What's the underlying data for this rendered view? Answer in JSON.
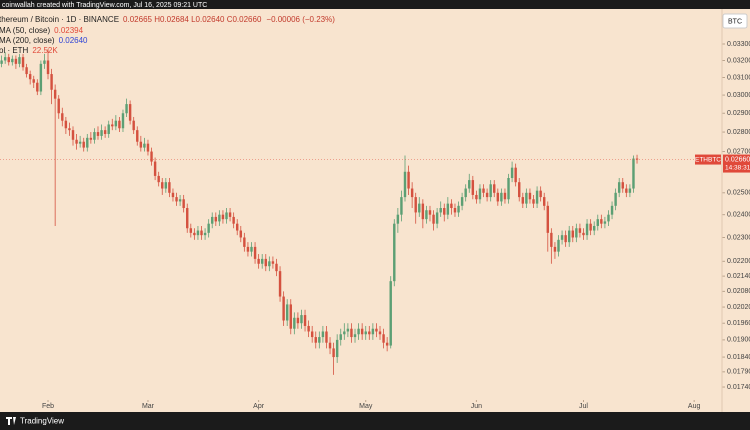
{
  "chart_data": {
    "type": "candlestick",
    "header": "coinwallah created with TradingView.com, Jul 16, 2025 09:21 UTC",
    "symbol": "thereum / Bitcoin · 1D · BINANCE",
    "ohlc_text": "0.02665  H0.02684  L0.02640  C0.02660",
    "change_text": "−0.00006 (−0.23%)",
    "indicators": [
      {
        "name": "MA (50, close)",
        "value": "0.02394",
        "color": "#e0493a"
      },
      {
        "name": "MA (200, close)",
        "value": "0.02640",
        "color": "#2f44d6"
      },
      {
        "name": "ol · ETH",
        "value": "22.52K",
        "color": "#e0493a"
      }
    ],
    "currency_button": "BTC",
    "last_price": {
      "symbol": "ETHBTC",
      "label": "0.02660",
      "countdown": "14:38:31",
      "value": 0.0266,
      "color": "#e0493a"
    },
    "up_color": "#5c9f74",
    "down_color": "#d4513f",
    "log_scale": true,
    "ylim": [
      0.01667,
      0.0349
    ],
    "yticks": [
      {
        "value": 0.033,
        "label": "0.03300"
      },
      {
        "value": 0.032,
        "label": "0.03200"
      },
      {
        "value": 0.031,
        "label": "0.03100"
      },
      {
        "value": 0.03,
        "label": "0.03000"
      },
      {
        "value": 0.029,
        "label": "0.02900"
      },
      {
        "value": 0.028,
        "label": "0.02800"
      },
      {
        "value": 0.027,
        "label": "0.02700"
      },
      {
        "value": 0.025,
        "label": "0.02500"
      },
      {
        "value": 0.024,
        "label": "0.02400"
      },
      {
        "value": 0.023,
        "label": "0.02300"
      },
      {
        "value": 0.022,
        "label": "0.02200"
      },
      {
        "value": 0.0214,
        "label": "0.02140"
      },
      {
        "value": 0.0208,
        "label": "0.02080"
      },
      {
        "value": 0.0202,
        "label": "0.02020"
      },
      {
        "value": 0.0196,
        "label": "0.01960"
      },
      {
        "value": 0.019,
        "label": "0.01900"
      },
      {
        "value": 0.0184,
        "label": "0.01840"
      },
      {
        "value": 0.0179,
        "label": "0.01790"
      },
      {
        "value": 0.0174,
        "label": "0.01740"
      }
    ],
    "xlim": [
      -0.45,
      201.8
    ],
    "xticks": [
      {
        "value": 13,
        "label": "Feb"
      },
      {
        "value": 41,
        "label": "Mar"
      },
      {
        "value": 72,
        "label": "Apr"
      },
      {
        "value": 102,
        "label": "May"
      },
      {
        "value": 133,
        "label": "Jun"
      },
      {
        "value": 163,
        "label": "Jul"
      },
      {
        "value": 194,
        "label": "Aug"
      }
    ],
    "open": [
      0.0318,
      0.032,
      0.0322,
      0.0319,
      0.0321,
      0.0318,
      0.0322,
      0.0316,
      0.0312,
      0.0309,
      0.0307,
      0.0302,
      0.0318,
      0.032,
      0.0312,
      0.0303,
      0.0298,
      0.029,
      0.0286,
      0.0282,
      0.0281,
      0.0276,
      0.0274,
      0.0275,
      0.0272,
      0.0277,
      0.0276,
      0.028,
      0.0278,
      0.0281,
      0.0279,
      0.0284,
      0.0283,
      0.0286,
      0.0282,
      0.029,
      0.0295,
      0.0286,
      0.0281,
      0.0275,
      0.0272,
      0.0274,
      0.027,
      0.0265,
      0.0258,
      0.0255,
      0.0252,
      0.0255,
      0.025,
      0.0248,
      0.0246,
      0.0247,
      0.0243,
      0.0234,
      0.0232,
      0.0231,
      0.0233,
      0.0231,
      0.0232,
      0.0236,
      0.0239,
      0.0237,
      0.024,
      0.0238,
      0.0241,
      0.0239,
      0.0236,
      0.0233,
      0.023,
      0.0226,
      0.0224,
      0.0226,
      0.0221,
      0.0219,
      0.0221,
      0.0218,
      0.022,
      0.0219,
      0.0216,
      0.0206,
      0.0197,
      0.0203,
      0.0194,
      0.0198,
      0.0196,
      0.0199,
      0.0195,
      0.0193,
      0.0191,
      0.0189,
      0.0191,
      0.0193,
      0.0189,
      0.0187,
      0.0184,
      0.019,
      0.0192,
      0.0193,
      0.0194,
      0.0191,
      0.0192,
      0.0194,
      0.0192,
      0.0193,
      0.0192,
      0.0194,
      0.0193,
      0.0192,
      0.0189,
      0.0188,
      0.0212,
      0.0236,
      0.024,
      0.0248,
      0.026,
      0.0252,
      0.0248,
      0.0241,
      0.0245,
      0.0238,
      0.0242,
      0.024,
      0.0236,
      0.0241,
      0.0243,
      0.024,
      0.0245,
      0.0243,
      0.0241,
      0.0244,
      0.0248,
      0.0252,
      0.0256,
      0.0249,
      0.0247,
      0.0252,
      0.025,
      0.0248,
      0.0254,
      0.025,
      0.0246,
      0.025,
      0.0247,
      0.0257,
      0.0262,
      0.0255,
      0.0248,
      0.0245,
      0.025,
      0.0247,
      0.0245,
      0.0251,
      0.0248,
      0.0244,
      0.0232,
      0.0226,
      0.0224,
      0.0229,
      0.0231,
      0.0228,
      0.0233,
      0.023,
      0.0234,
      0.0232,
      0.0231,
      0.0236,
      0.0233,
      0.0235,
      0.0238,
      0.0236,
      0.0237,
      0.024,
      0.0244,
      0.025,
      0.0255,
      0.0252,
      0.025,
      0.0252,
      0.02665
    ],
    "high": [
      0.0323,
      0.0325,
      0.0324,
      0.0323,
      0.0323,
      0.0324,
      0.0324,
      0.0318,
      0.0314,
      0.0311,
      0.0309,
      0.032,
      0.0324,
      0.0327,
      0.0315,
      0.0306,
      0.03,
      0.0293,
      0.0288,
      0.0285,
      0.0283,
      0.0279,
      0.0278,
      0.0277,
      0.0279,
      0.028,
      0.0282,
      0.0283,
      0.0284,
      0.0283,
      0.0286,
      0.0287,
      0.0289,
      0.0288,
      0.0292,
      0.0298,
      0.0297,
      0.0288,
      0.0283,
      0.0278,
      0.0277,
      0.0276,
      0.0272,
      0.0267,
      0.026,
      0.0257,
      0.0257,
      0.0257,
      0.0252,
      0.025,
      0.0249,
      0.0249,
      0.0245,
      0.0236,
      0.0234,
      0.0235,
      0.0235,
      0.0234,
      0.0238,
      0.0241,
      0.0241,
      0.0242,
      0.0242,
      0.0243,
      0.0243,
      0.0241,
      0.0238,
      0.0235,
      0.0232,
      0.0228,
      0.0228,
      0.0228,
      0.0223,
      0.0223,
      0.0223,
      0.0222,
      0.0222,
      0.0221,
      0.0218,
      0.0208,
      0.0205,
      0.0205,
      0.02,
      0.02,
      0.0201,
      0.0201,
      0.0197,
      0.0195,
      0.0193,
      0.0193,
      0.0195,
      0.0195,
      0.0191,
      0.0189,
      0.0192,
      0.0194,
      0.0196,
      0.0196,
      0.0196,
      0.0194,
      0.0196,
      0.0196,
      0.0195,
      0.0195,
      0.0196,
      0.0196,
      0.0195,
      0.0194,
      0.0191,
      0.0214,
      0.0238,
      0.0243,
      0.0251,
      0.0268,
      0.0263,
      0.0255,
      0.025,
      0.0248,
      0.0247,
      0.0244,
      0.0244,
      0.0242,
      0.0243,
      0.0246,
      0.0245,
      0.0248,
      0.0247,
      0.0245,
      0.0246,
      0.025,
      0.0254,
      0.0259,
      0.0258,
      0.0251,
      0.0254,
      0.0254,
      0.0252,
      0.0256,
      0.0256,
      0.0252,
      0.0252,
      0.0252,
      0.0259,
      0.0265,
      0.0264,
      0.0257,
      0.025,
      0.0252,
      0.0252,
      0.0249,
      0.0253,
      0.0253,
      0.025,
      0.0246,
      0.0234,
      0.0228,
      0.0231,
      0.0233,
      0.0233,
      0.0235,
      0.0235,
      0.0236,
      0.0236,
      0.0234,
      0.0238,
      0.0238,
      0.0237,
      0.024,
      0.024,
      0.0239,
      0.0242,
      0.0246,
      0.0252,
      0.0257,
      0.0257,
      0.0254,
      0.0254,
      0.0268,
      0.02684
    ],
    "low": [
      0.0316,
      0.0318,
      0.0317,
      0.0317,
      0.0315,
      0.0316,
      0.0314,
      0.031,
      0.0306,
      0.0304,
      0.03,
      0.03,
      0.0315,
      0.0309,
      0.0295,
      0.0235,
      0.0287,
      0.0283,
      0.0279,
      0.0278,
      0.0273,
      0.0271,
      0.0272,
      0.027,
      0.027,
      0.0274,
      0.0274,
      0.0276,
      0.0276,
      0.0277,
      0.0277,
      0.0281,
      0.0281,
      0.028,
      0.028,
      0.0288,
      0.0284,
      0.0279,
      0.0273,
      0.027,
      0.027,
      0.0268,
      0.0263,
      0.0256,
      0.0253,
      0.0249,
      0.025,
      0.0248,
      0.0246,
      0.0244,
      0.0244,
      0.0241,
      0.0232,
      0.023,
      0.0229,
      0.0229,
      0.0229,
      0.0229,
      0.023,
      0.0234,
      0.0235,
      0.0235,
      0.0236,
      0.0236,
      0.0237,
      0.0234,
      0.0231,
      0.0228,
      0.0224,
      0.0222,
      0.0222,
      0.0219,
      0.0217,
      0.0217,
      0.0216,
      0.0216,
      0.0217,
      0.0214,
      0.0204,
      0.0195,
      0.0195,
      0.0192,
      0.0192,
      0.0194,
      0.0194,
      0.0193,
      0.0191,
      0.0189,
      0.0187,
      0.0187,
      0.0189,
      0.0187,
      0.0185,
      0.0178,
      0.0182,
      0.0188,
      0.019,
      0.0191,
      0.0189,
      0.0189,
      0.019,
      0.019,
      0.019,
      0.019,
      0.019,
      0.0191,
      0.019,
      0.0187,
      0.0186,
      0.0187,
      0.021,
      0.0232,
      0.0237,
      0.0246,
      0.0249,
      0.0243,
      0.0236,
      0.0239,
      0.0234,
      0.0236,
      0.0237,
      0.0233,
      0.0234,
      0.0239,
      0.0237,
      0.0238,
      0.024,
      0.0239,
      0.0239,
      0.0242,
      0.0246,
      0.025,
      0.0247,
      0.0245,
      0.0245,
      0.0248,
      0.0246,
      0.0246,
      0.0248,
      0.0244,
      0.0244,
      0.0245,
      0.0245,
      0.0255,
      0.0253,
      0.0246,
      0.0243,
      0.0243,
      0.0245,
      0.0243,
      0.0243,
      0.0246,
      0.0242,
      0.0224,
      0.0219,
      0.0221,
      0.0222,
      0.0227,
      0.0226,
      0.0226,
      0.0228,
      0.0228,
      0.023,
      0.0229,
      0.0229,
      0.0231,
      0.0231,
      0.0233,
      0.0234,
      0.0234,
      0.0235,
      0.0238,
      0.0242,
      0.0248,
      0.025,
      0.0248,
      0.0248,
      0.025,
      0.0264
    ],
    "close": [
      0.032,
      0.0322,
      0.0319,
      0.0321,
      0.0318,
      0.0322,
      0.0316,
      0.0312,
      0.0309,
      0.0307,
      0.0302,
      0.0318,
      0.032,
      0.0312,
      0.0303,
      0.0298,
      0.029,
      0.0286,
      0.0282,
      0.0281,
      0.0276,
      0.0274,
      0.0275,
      0.0272,
      0.0277,
      0.0276,
      0.028,
      0.0278,
      0.0281,
      0.0279,
      0.0284,
      0.0283,
      0.0286,
      0.0282,
      0.029,
      0.0295,
      0.0286,
      0.0281,
      0.0275,
      0.0272,
      0.0274,
      0.027,
      0.0265,
      0.0258,
      0.0255,
      0.0252,
      0.0255,
      0.025,
      0.0248,
      0.0246,
      0.0247,
      0.0243,
      0.0234,
      0.0232,
      0.0231,
      0.0233,
      0.0231,
      0.0232,
      0.0236,
      0.0239,
      0.0237,
      0.024,
      0.0238,
      0.0241,
      0.0239,
      0.0236,
      0.0233,
      0.023,
      0.0226,
      0.0224,
      0.0226,
      0.0221,
      0.0219,
      0.0221,
      0.0218,
      0.022,
      0.0219,
      0.0216,
      0.0206,
      0.0197,
      0.0203,
      0.0194,
      0.0198,
      0.0196,
      0.0199,
      0.0195,
      0.0193,
      0.0191,
      0.0189,
      0.0191,
      0.0193,
      0.0189,
      0.0187,
      0.0184,
      0.019,
      0.0192,
      0.0193,
      0.0194,
      0.0191,
      0.0192,
      0.0194,
      0.0192,
      0.0193,
      0.0192,
      0.0194,
      0.0193,
      0.0192,
      0.0189,
      0.0188,
      0.0212,
      0.0236,
      0.024,
      0.0248,
      0.026,
      0.0252,
      0.0248,
      0.0241,
      0.0245,
      0.0238,
      0.0242,
      0.024,
      0.0236,
      0.0241,
      0.0243,
      0.024,
      0.0245,
      0.0243,
      0.0241,
      0.0244,
      0.0248,
      0.0252,
      0.0256,
      0.0249,
      0.0247,
      0.0252,
      0.025,
      0.0248,
      0.0254,
      0.025,
      0.0246,
      0.025,
      0.0247,
      0.0257,
      0.0262,
      0.0255,
      0.0248,
      0.0245,
      0.025,
      0.0247,
      0.0245,
      0.0251,
      0.0248,
      0.0244,
      0.0232,
      0.0226,
      0.0224,
      0.0229,
      0.0231,
      0.0228,
      0.0233,
      0.023,
      0.0234,
      0.0232,
      0.0231,
      0.0236,
      0.0233,
      0.0235,
      0.0238,
      0.0236,
      0.0237,
      0.024,
      0.0244,
      0.025,
      0.0255,
      0.0252,
      0.025,
      0.0252,
      0.02665,
      0.0266
    ],
    "footer": "TradingView"
  }
}
